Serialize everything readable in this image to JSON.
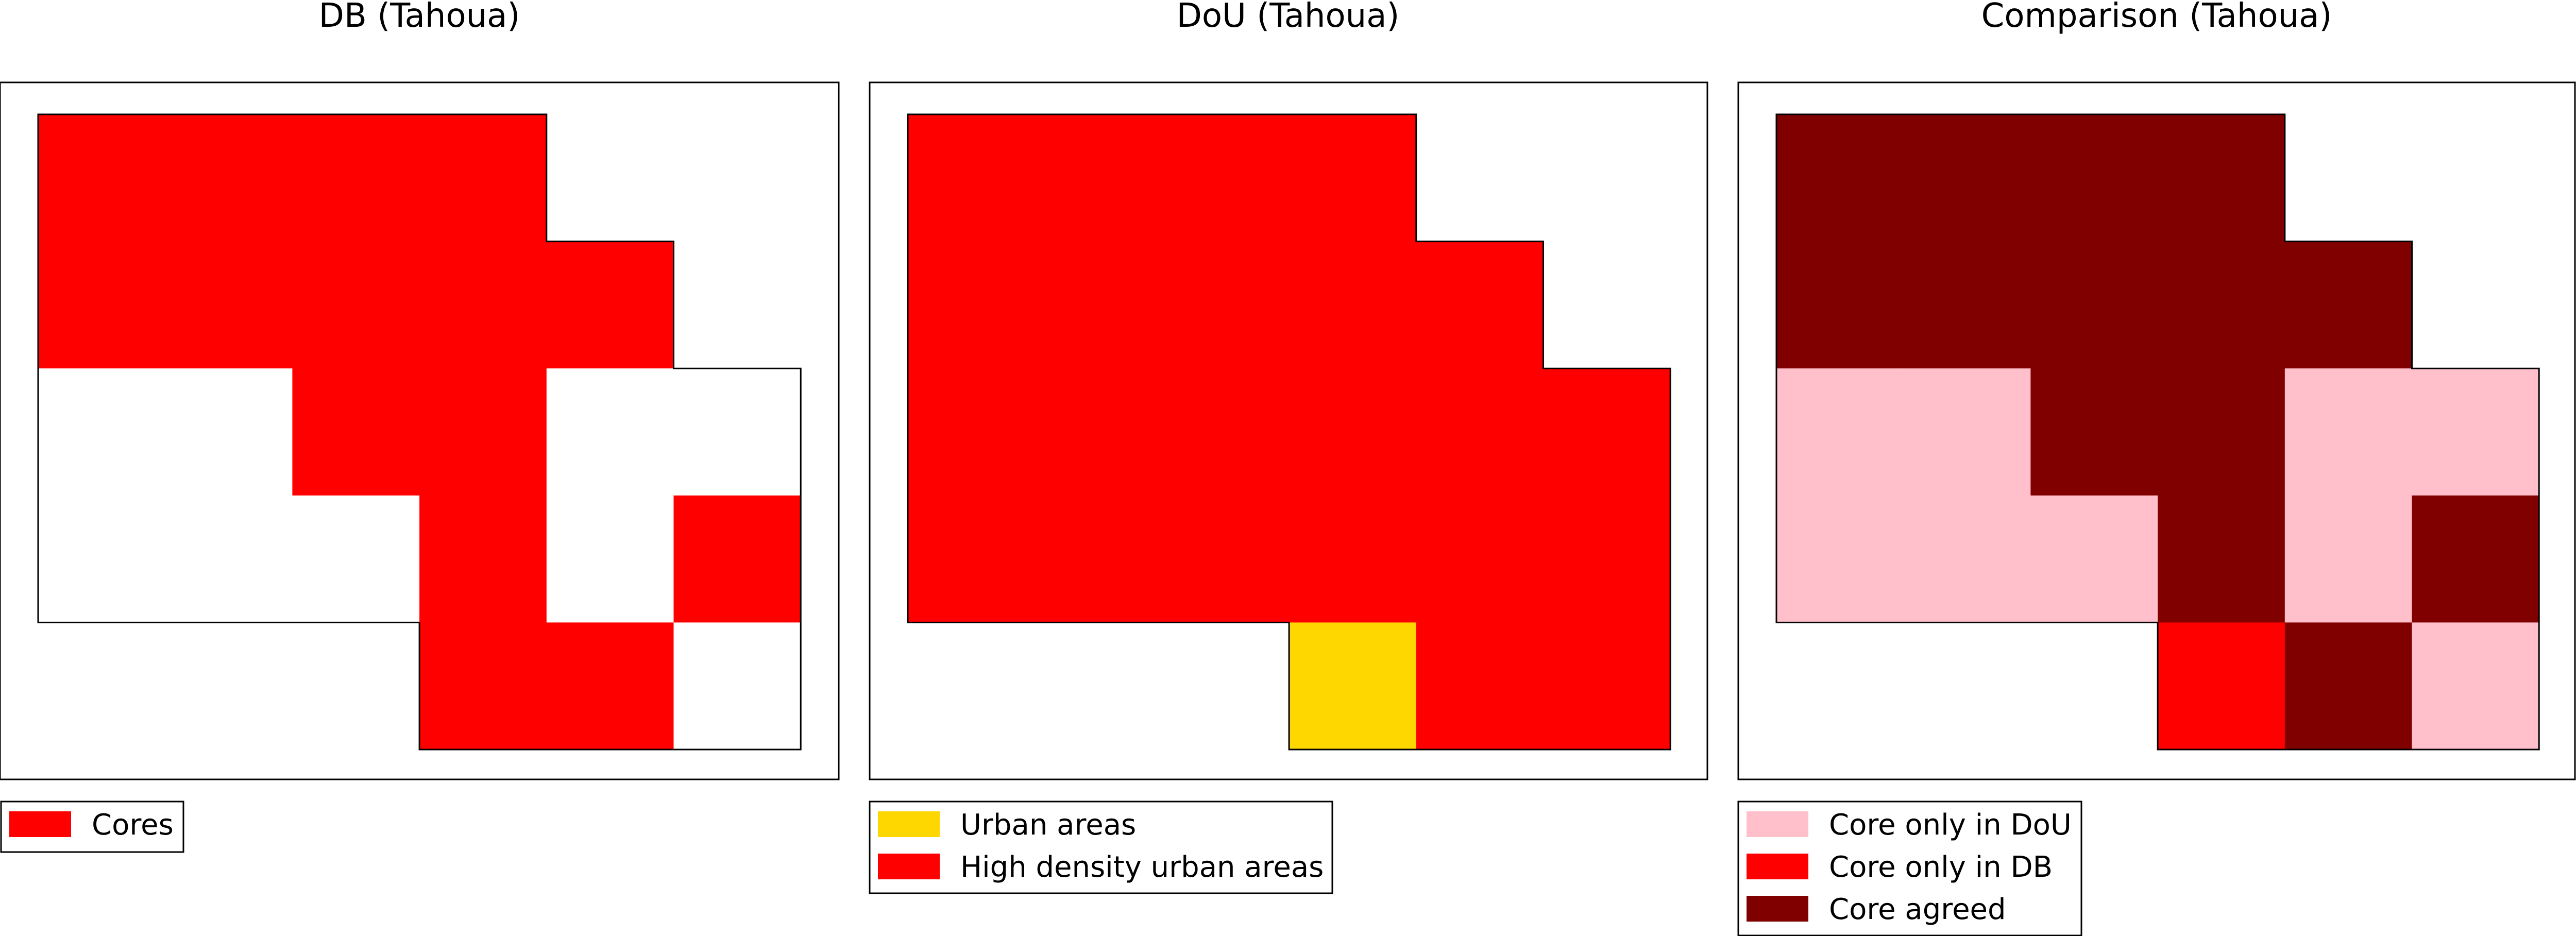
{
  "colors": {
    "core": "#ff0000",
    "urban": "#ffd700",
    "core_only_dou": "#ffc0cb",
    "core_only_db": "#ff0000",
    "core_agreed": "#800000",
    "outside": "#ffffff"
  },
  "panels": [
    {
      "title": "DB (Tahoua)",
      "map_grid": [
        [
          "core",
          "core",
          "core",
          "core",
          "empty",
          "empty"
        ],
        [
          "core",
          "core",
          "core",
          "core",
          "core",
          "empty"
        ],
        [
          "none",
          "none",
          "core",
          "core",
          "none",
          "none"
        ],
        [
          "none",
          "none",
          "none",
          "core",
          "none",
          "core"
        ],
        [
          "empty",
          "empty",
          "empty",
          "core",
          "core",
          "none"
        ]
      ],
      "legend": [
        {
          "label": "Cores",
          "color_key": "core"
        }
      ]
    },
    {
      "title": "DoU (Tahoua)",
      "map_grid": [
        [
          "high",
          "high",
          "high",
          "high",
          "empty",
          "empty"
        ],
        [
          "high",
          "high",
          "high",
          "high",
          "high",
          "empty"
        ],
        [
          "high",
          "high",
          "high",
          "high",
          "high",
          "high"
        ],
        [
          "high",
          "high",
          "high",
          "high",
          "high",
          "high"
        ],
        [
          "empty",
          "empty",
          "empty",
          "urban",
          "high",
          "high"
        ]
      ],
      "legend": [
        {
          "label": "Urban areas",
          "color_key": "urban"
        },
        {
          "label": "High density urban areas",
          "color_key": "core"
        }
      ]
    },
    {
      "title": "Comparison (Tahoua)",
      "map_grid": [
        [
          "agreed",
          "agreed",
          "agreed",
          "agreed",
          "empty",
          "empty"
        ],
        [
          "agreed",
          "agreed",
          "agreed",
          "agreed",
          "agreed",
          "empty"
        ],
        [
          "dou",
          "dou",
          "agreed",
          "agreed",
          "dou",
          "dou"
        ],
        [
          "dou",
          "dou",
          "dou",
          "agreed",
          "dou",
          "agreed"
        ],
        [
          "empty",
          "empty",
          "empty",
          "db",
          "agreed",
          "dou"
        ]
      ],
      "legend": [
        {
          "label": "Core only in DoU",
          "color_key": "core_only_dou"
        },
        {
          "label": "Core only in DB",
          "color_key": "core_only_db"
        },
        {
          "label": "Core agreed",
          "color_key": "core_agreed"
        }
      ]
    }
  ]
}
